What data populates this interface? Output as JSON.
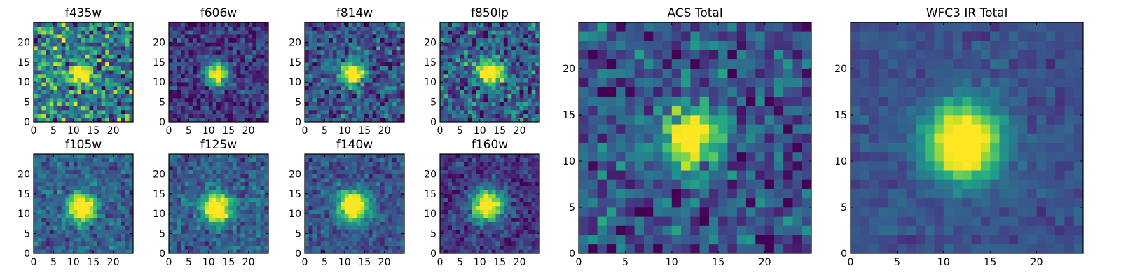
{
  "figure": {
    "colormap": "viridis",
    "colormap_stops": [
      "#440154",
      "#482475",
      "#414487",
      "#355f8d",
      "#2a788e",
      "#21918c",
      "#22a884",
      "#44bf70",
      "#7ad151",
      "#bddf26",
      "#fde725"
    ]
  },
  "chart_data": [
    {
      "type": "heatmap",
      "title": "f435w",
      "grid_size": 25,
      "x_ticks": [
        0,
        5,
        10,
        15,
        20
      ],
      "y_ticks": [
        0,
        5,
        10,
        15,
        20
      ],
      "xlim": [
        0,
        25
      ],
      "ylim": [
        0,
        25
      ],
      "source_center": [
        11.5,
        11.5
      ],
      "source_sigma": 1.7,
      "background_level": 0.45,
      "noise_level": 0.45,
      "grid": false,
      "legend": "none"
    },
    {
      "type": "heatmap",
      "title": "f606w",
      "grid_size": 25,
      "x_ticks": [
        0,
        5,
        10,
        15,
        20
      ],
      "y_ticks": [
        0,
        5,
        10,
        15,
        20
      ],
      "xlim": [
        0,
        25
      ],
      "ylim": [
        0,
        25
      ],
      "source_center": [
        11.5,
        11.5
      ],
      "source_sigma": 1.9,
      "background_level": 0.15,
      "noise_level": 0.25,
      "grid": false,
      "legend": "none"
    },
    {
      "type": "heatmap",
      "title": "f814w",
      "grid_size": 25,
      "x_ticks": [
        0,
        5,
        10,
        15,
        20
      ],
      "y_ticks": [
        0,
        5,
        10,
        15,
        20
      ],
      "xlim": [
        0,
        25
      ],
      "ylim": [
        0,
        25
      ],
      "source_center": [
        11.5,
        11.5
      ],
      "source_sigma": 2.0,
      "background_level": 0.25,
      "noise_level": 0.3,
      "grid": false,
      "legend": "none"
    },
    {
      "type": "heatmap",
      "title": "f850lp",
      "grid_size": 25,
      "x_ticks": [
        0,
        5,
        10,
        15,
        20
      ],
      "y_ticks": [
        0,
        5,
        10,
        15,
        20
      ],
      "xlim": [
        0,
        25
      ],
      "ylim": [
        0,
        25
      ],
      "source_center": [
        11.5,
        12.0
      ],
      "source_sigma": 2.0,
      "background_level": 0.3,
      "noise_level": 0.35,
      "grid": false,
      "legend": "none"
    },
    {
      "type": "heatmap",
      "title": "f105w",
      "grid_size": 25,
      "x_ticks": [
        0,
        5,
        10,
        15,
        20
      ],
      "y_ticks": [
        0,
        5,
        10,
        15,
        20
      ],
      "xlim": [
        0,
        25
      ],
      "ylim": [
        0,
        25
      ],
      "source_center": [
        11.5,
        11.0
      ],
      "source_sigma": 2.4,
      "background_level": 0.3,
      "noise_level": 0.2,
      "grid": false,
      "legend": "none"
    },
    {
      "type": "heatmap",
      "title": "f125w",
      "grid_size": 25,
      "x_ticks": [
        0,
        5,
        10,
        15,
        20
      ],
      "y_ticks": [
        0,
        5,
        10,
        15,
        20
      ],
      "xlim": [
        0,
        25
      ],
      "ylim": [
        0,
        25
      ],
      "source_center": [
        11.5,
        11.0
      ],
      "source_sigma": 2.5,
      "background_level": 0.3,
      "noise_level": 0.2,
      "grid": false,
      "legend": "none"
    },
    {
      "type": "heatmap",
      "title": "f140w",
      "grid_size": 25,
      "x_ticks": [
        0,
        5,
        10,
        15,
        20
      ],
      "y_ticks": [
        0,
        5,
        10,
        15,
        20
      ],
      "xlim": [
        0,
        25
      ],
      "ylim": [
        0,
        25
      ],
      "source_center": [
        11.5,
        11.5
      ],
      "source_sigma": 2.7,
      "background_level": 0.25,
      "noise_level": 0.18,
      "grid": false,
      "legend": "none"
    },
    {
      "type": "heatmap",
      "title": "f160w",
      "grid_size": 25,
      "x_ticks": [
        0,
        5,
        10,
        15,
        20
      ],
      "y_ticks": [
        0,
        5,
        10,
        15,
        20
      ],
      "xlim": [
        0,
        25
      ],
      "ylim": [
        0,
        25
      ],
      "source_center": [
        11.5,
        11.5
      ],
      "source_sigma": 2.8,
      "background_level": 0.15,
      "noise_level": 0.18,
      "grid": false,
      "legend": "none"
    },
    {
      "type": "heatmap",
      "title": "ACS Total",
      "grid_size": 25,
      "x_ticks": [
        0,
        5,
        10,
        15,
        20
      ],
      "y_ticks": [
        0,
        5,
        10,
        15,
        20
      ],
      "xlim": [
        0,
        25
      ],
      "ylim": [
        0,
        25
      ],
      "source_center": [
        11.5,
        12.0
      ],
      "source_sigma": 2.1,
      "background_level": 0.25,
      "noise_level": 0.28,
      "grid": false,
      "legend": "none"
    },
    {
      "type": "heatmap",
      "title": "WFC3 IR Total",
      "grid_size": 25,
      "x_ticks": [
        0,
        5,
        10,
        15,
        20
      ],
      "y_ticks": [
        0,
        5,
        10,
        15,
        20
      ],
      "xlim": [
        0,
        25
      ],
      "ylim": [
        0,
        25
      ],
      "source_center": [
        11.5,
        11.5
      ],
      "source_sigma": 2.8,
      "background_level": 0.25,
      "noise_level": 0.1,
      "grid": false,
      "legend": "none"
    }
  ]
}
